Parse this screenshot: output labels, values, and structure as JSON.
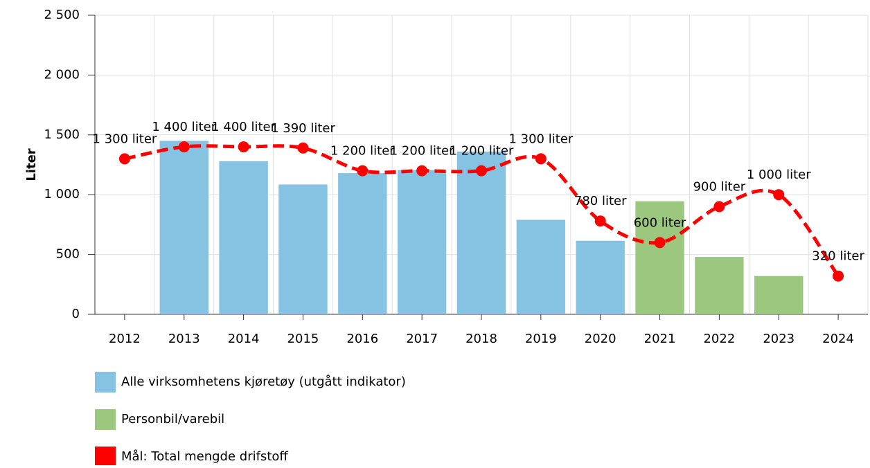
{
  "chart_data": {
    "type": "bar",
    "y_label": "Liter",
    "categories": [
      "2012",
      "2013",
      "2014",
      "2015",
      "2016",
      "2017",
      "2018",
      "2019",
      "2020",
      "2021",
      "2022",
      "2023",
      "2024"
    ],
    "series": [
      {
        "name": "Alle virksomhetens kjøretøy (utgått indikator)",
        "type": "bar",
        "color": "#86c2e2",
        "values": [
          null,
          1450,
          1280,
          1085,
          1180,
          1205,
          1360,
          790,
          615,
          null,
          null,
          null,
          null
        ]
      },
      {
        "name": "Personbil/varebil",
        "type": "bar",
        "color": "#9bc77e",
        "values": [
          null,
          null,
          null,
          null,
          null,
          null,
          null,
          null,
          null,
          945,
          480,
          320,
          null
        ]
      },
      {
        "name": "Mål: Total mengde drifstoff",
        "type": "line",
        "color": "#ff0000",
        "values": [
          1300,
          1400,
          1400,
          1390,
          1200,
          1200,
          1200,
          1300,
          780,
          600,
          900,
          1000,
          320
        ],
        "value_labels": [
          "1 300 liter",
          "1 400 liter",
          "1 400 liter",
          "1 390 liter",
          "1 200 liter",
          "1 200 liter",
          "1 200 liter",
          "1 300 liter",
          "780 liter",
          "600 liter",
          "900 liter",
          "1 000 liter",
          "320 liter"
        ]
      }
    ],
    "ylim": [
      0,
      2500
    ],
    "yticks": [
      0,
      500,
      {
        "value": 1000,
        "label": "1 000"
      },
      {
        "value": 1500,
        "label": "1 500"
      },
      {
        "value": 2000,
        "label": "2 000"
      },
      {
        "value": 2500,
        "label": "2 500"
      }
    ],
    "grid": true
  }
}
